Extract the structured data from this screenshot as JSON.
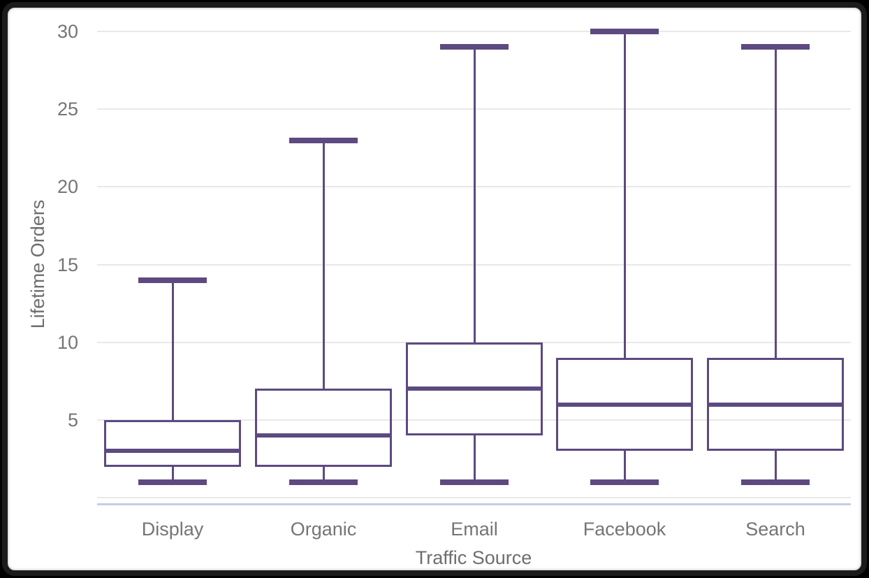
{
  "colors": {
    "box_stroke": "#5c4a80",
    "median_line": "#5c4a80",
    "whisker": "#5c4a80",
    "gridline": "#e8e8e8",
    "x_axis_line": "#c3cfe6",
    "tick_label_text": "#757575",
    "axis_title_text": "#6e6e6e",
    "frame": "#1b1b1d",
    "plot_background": "#ffffff"
  },
  "chart_data": {
    "type": "boxplot",
    "title": "",
    "xlabel": "Traffic Source",
    "ylabel": "Lifetime Orders",
    "categories": [
      "Display",
      "Organic",
      "Email",
      "Facebook",
      "Search"
    ],
    "series": [
      {
        "name": "Display",
        "min": 1,
        "q1": 2,
        "median": 3,
        "q3": 5,
        "max": 14
      },
      {
        "name": "Organic",
        "min": 1,
        "q1": 2,
        "median": 4,
        "q3": 7,
        "max": 23
      },
      {
        "name": "Email",
        "min": 1,
        "q1": 4,
        "median": 7,
        "q3": 10,
        "max": 29
      },
      {
        "name": "Facebook",
        "min": 1,
        "q1": 3,
        "median": 6,
        "q3": 9,
        "max": 30
      },
      {
        "name": "Search",
        "min": 1,
        "q1": 3,
        "median": 6,
        "q3": 9,
        "max": 29
      }
    ],
    "ylim": [
      0,
      30
    ],
    "yticks": [
      5,
      10,
      15,
      20,
      25,
      30
    ],
    "gridlines_at": [
      0,
      5,
      10,
      15,
      20,
      25,
      30
    ],
    "grid": true,
    "legend": "none"
  }
}
